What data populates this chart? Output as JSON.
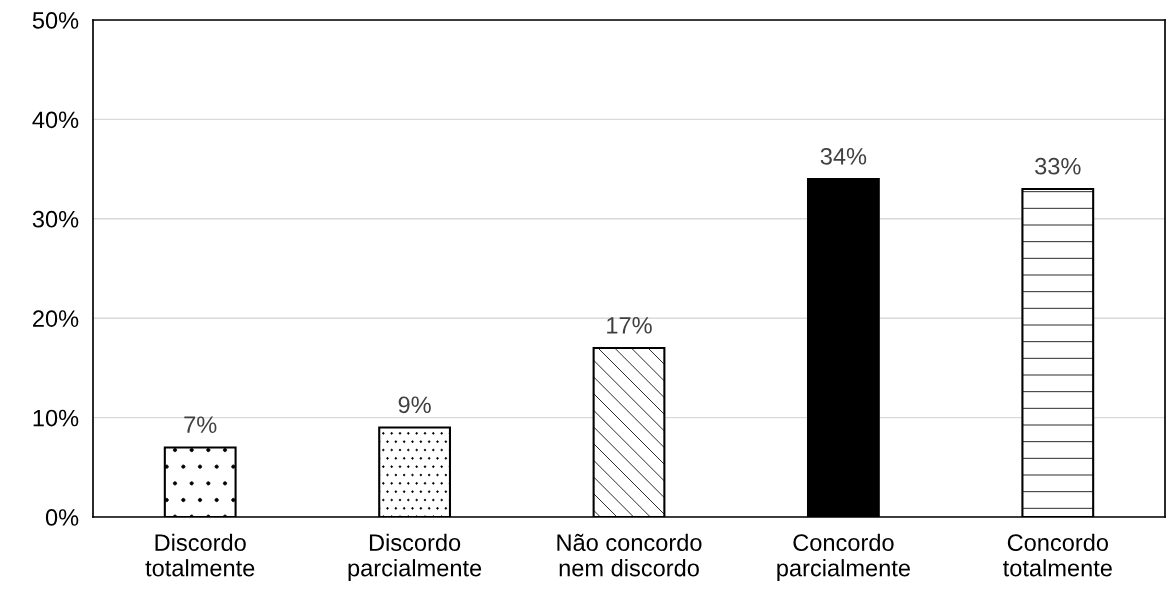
{
  "chart_data": {
    "type": "bar",
    "categories": [
      "Discordo\ntotalmente",
      "Discordo\nparcialmente",
      "Não concordo\nnem discordo",
      "Concordo\nparcialmente",
      "Concordo\ntotalmente"
    ],
    "values": [
      7,
      9,
      17,
      34,
      33
    ],
    "value_labels": [
      "7%",
      "9%",
      "17%",
      "34%",
      "33%"
    ],
    "colors": [
      "#ffffff",
      "#ffffff",
      "#ffffff",
      "#000000",
      "#ffffff"
    ],
    "ylim": [
      0,
      50
    ],
    "yticks": [
      {
        "value": 0,
        "label": "0%"
      },
      {
        "value": 10,
        "label": "10%"
      },
      {
        "value": 20,
        "label": "20%"
      },
      {
        "value": 30,
        "label": "30%"
      },
      {
        "value": 40,
        "label": "40%"
      },
      {
        "value": 50,
        "label": "50%"
      }
    ],
    "grid": "y"
  }
}
